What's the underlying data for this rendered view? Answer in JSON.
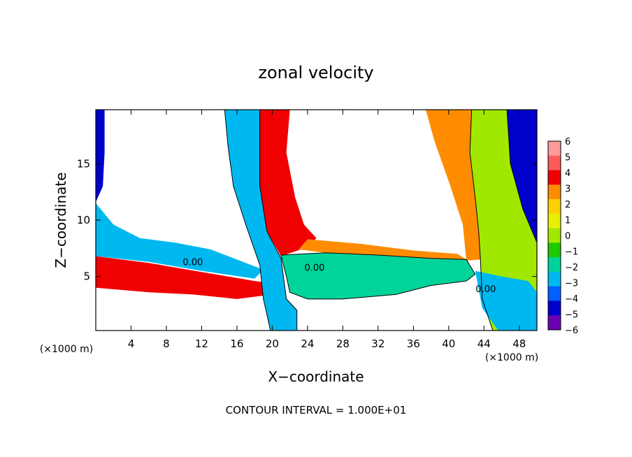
{
  "chart_data": {
    "type": "heatmap",
    "title": "zonal velocity",
    "xlabel": "X−coordinate",
    "ylabel": "Z−coordinate",
    "x_unit_left": "(×1000 m)",
    "x_unit_right": "(×1000 m)",
    "footer": "CONTOUR INTERVAL = 1.000E+01",
    "xlim": [
      0,
      50
    ],
    "ylim": [
      0.2,
      19.8
    ],
    "xticks": [
      4,
      8,
      12,
      16,
      20,
      24,
      28,
      32,
      36,
      40,
      44,
      48
    ],
    "xtick_labels": [
      "4",
      "8",
      "12",
      "16",
      "20",
      "24",
      "28",
      "32",
      "36",
      "40",
      "44",
      "48"
    ],
    "yticks": [
      5,
      10,
      15
    ],
    "ytick_labels": [
      "5",
      "10",
      "15"
    ],
    "colorbar": {
      "levels": [
        6,
        5,
        4,
        3,
        2,
        1,
        0,
        -1,
        -2,
        -3,
        -4,
        -5,
        -6
      ],
      "labels": [
        "6",
        "5",
        "4",
        "3",
        "2",
        "1",
        "0",
        "−1",
        "−2",
        "−3",
        "−4",
        "−5",
        "−6"
      ],
      "colors": [
        "#ff9a9a",
        "#ff5a5a",
        "#f00000",
        "#ff8c00",
        "#ffd000",
        "#e8f000",
        "#a0e800",
        "#20c800",
        "#00d49a",
        "#00b8f0",
        "#0060ff",
        "#0000cc",
        "#6a00b0"
      ]
    },
    "contour_labels": [
      {
        "text": "0.00",
        "x": 11,
        "z": 6.0
      },
      {
        "text": "0.00",
        "x": 24.8,
        "z": 5.5
      },
      {
        "text": "0.00",
        "x": 44.2,
        "z": 3.6
      }
    ],
    "field_regions": [
      {
        "name": "left-low-band",
        "value": 4,
        "points": [
          [
            0,
            6.8
          ],
          [
            6,
            6.2
          ],
          [
            12,
            5.4
          ],
          [
            18,
            4.6
          ],
          [
            20,
            4.4
          ],
          [
            20,
            3.4
          ],
          [
            16,
            3.0
          ],
          [
            11,
            3.4
          ],
          [
            6,
            3.6
          ],
          [
            0,
            4.0
          ]
        ]
      },
      {
        "name": "left-upper-band",
        "value": -3,
        "points": [
          [
            0,
            11.5
          ],
          [
            2,
            9.6
          ],
          [
            5,
            8.4
          ],
          [
            9,
            8.0
          ],
          [
            13,
            7.4
          ],
          [
            17,
            6.2
          ],
          [
            19,
            5.6
          ],
          [
            18,
            4.8
          ],
          [
            12,
            5.5
          ],
          [
            6,
            6.3
          ],
          [
            0,
            6.8
          ]
        ]
      },
      {
        "name": "left-edge-column",
        "value": -5,
        "points": [
          [
            0,
            19.8
          ],
          [
            1,
            19.8
          ],
          [
            1,
            16
          ],
          [
            0.8,
            13
          ],
          [
            0,
            11.6
          ]
        ]
      },
      {
        "name": "central-column",
        "value": -3,
        "points": [
          [
            14.6,
            19.8
          ],
          [
            18.6,
            19.8
          ],
          [
            18.6,
            13
          ],
          [
            19.4,
            9
          ],
          [
            21,
            6.6
          ],
          [
            21.6,
            3
          ],
          [
            22.8,
            2
          ],
          [
            22.8,
            0.2
          ],
          [
            19.8,
            0.2
          ],
          [
            19,
            3
          ],
          [
            18.6,
            6
          ],
          [
            17,
            9.6
          ],
          [
            15.6,
            13
          ],
          [
            15,
            16.5
          ]
        ]
      },
      {
        "name": "central-warm-column",
        "value": 4,
        "points": [
          [
            18.6,
            19.8
          ],
          [
            22,
            19.8
          ],
          [
            21.6,
            16
          ],
          [
            22.6,
            12
          ],
          [
            23.6,
            9.6
          ],
          [
            25,
            8.4
          ],
          [
            24,
            7.6
          ],
          [
            21,
            6.8
          ],
          [
            19.4,
            9
          ],
          [
            18.6,
            13
          ]
        ]
      },
      {
        "name": "mid-shear-band",
        "value": -2,
        "points": [
          [
            21,
            6.9
          ],
          [
            26,
            7.1
          ],
          [
            32,
            6.9
          ],
          [
            38,
            6.6
          ],
          [
            42,
            6.5
          ],
          [
            43,
            5.2
          ],
          [
            42,
            4.6
          ],
          [
            38,
            4.2
          ],
          [
            34,
            3.4
          ],
          [
            28,
            3.0
          ],
          [
            24,
            3.0
          ],
          [
            22,
            3.6
          ],
          [
            21.6,
            5
          ]
        ]
      },
      {
        "name": "mid-warm-strip",
        "value": 3,
        "points": [
          [
            24,
            8.3
          ],
          [
            30,
            7.9
          ],
          [
            36,
            7.3
          ],
          [
            41,
            7.0
          ],
          [
            42,
            6.5
          ],
          [
            38,
            6.6
          ],
          [
            32,
            6.9
          ],
          [
            26,
            7.1
          ],
          [
            23,
            7.4
          ]
        ]
      },
      {
        "name": "right-warm-column",
        "value": 3,
        "points": [
          [
            37.4,
            19.8
          ],
          [
            42.6,
            19.8
          ],
          [
            42.4,
            16
          ],
          [
            43,
            12
          ],
          [
            43.4,
            9
          ],
          [
            43.6,
            6.5
          ],
          [
            42,
            6.4
          ],
          [
            41.6,
            9.6
          ],
          [
            40.2,
            13
          ],
          [
            38.4,
            17
          ]
        ]
      },
      {
        "name": "right-green-column",
        "value": 0,
        "points": [
          [
            42.6,
            19.8
          ],
          [
            46.6,
            19.8
          ],
          [
            47,
            15
          ],
          [
            48.4,
            11
          ],
          [
            50,
            8
          ],
          [
            50,
            0.2
          ],
          [
            45,
            0.2
          ],
          [
            43.8,
            3
          ],
          [
            43.6,
            6.5
          ],
          [
            43.4,
            9
          ],
          [
            43,
            12
          ],
          [
            42.4,
            16
          ]
        ]
      },
      {
        "name": "right-edge-cold",
        "value": -5,
        "points": [
          [
            46.6,
            19.8
          ],
          [
            50,
            19.8
          ],
          [
            50,
            8
          ],
          [
            48.4,
            11
          ],
          [
            47,
            15
          ]
        ]
      },
      {
        "name": "lower-right-cold-patch",
        "value": -3,
        "points": [
          [
            43,
            5.5
          ],
          [
            46,
            5.0
          ],
          [
            49,
            4.6
          ],
          [
            50,
            3.6
          ],
          [
            50,
            0.2
          ],
          [
            45.6,
            0.2
          ],
          [
            43.8,
            2.2
          ]
        ]
      }
    ]
  }
}
